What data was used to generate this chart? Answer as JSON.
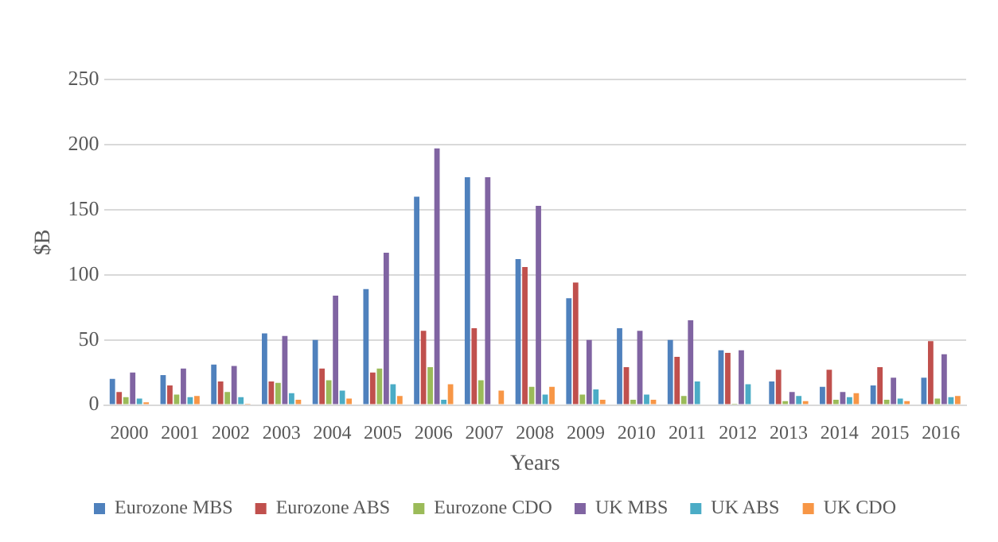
{
  "chart_data": {
    "type": "bar",
    "xlabel": "Years",
    "ylabel": "$B",
    "categories": [
      "2000",
      "2001",
      "2002",
      "2003",
      "2004",
      "2005",
      "2006",
      "2007",
      "2008",
      "2009",
      "2010",
      "2011",
      "2012",
      "2013",
      "2014",
      "2015",
      "2016"
    ],
    "series": [
      {
        "name": "Eurozone MBS",
        "color": "#4f81bd",
        "values": [
          20,
          23,
          31,
          55,
          50,
          89,
          160,
          175,
          112,
          82,
          59,
          50,
          42,
          18,
          14,
          15,
          21
        ]
      },
      {
        "name": "Eurozone ABS",
        "color": "#c0504d",
        "values": [
          10,
          15,
          18,
          18,
          28,
          25,
          57,
          59,
          106,
          94,
          29,
          37,
          40,
          27,
          27,
          29,
          49
        ]
      },
      {
        "name": "Eurozone CDO",
        "color": "#9bbb59",
        "values": [
          6,
          8,
          10,
          17,
          19,
          28,
          29,
          19,
          14,
          8,
          4,
          7,
          1,
          3,
          4,
          4,
          5
        ]
      },
      {
        "name": "UK MBS",
        "color": "#8064a2",
        "values": [
          25,
          28,
          30,
          53,
          84,
          117,
          197,
          175,
          153,
          50,
          57,
          65,
          42,
          10,
          10,
          21,
          39
        ]
      },
      {
        "name": "UK ABS",
        "color": "#4bacc6",
        "values": [
          5,
          6,
          6,
          9,
          11,
          16,
          4,
          0,
          8,
          12,
          8,
          18,
          16,
          7,
          6,
          5,
          6
        ]
      },
      {
        "name": "UK CDO",
        "color": "#f79646",
        "values": [
          2,
          7,
          1,
          4,
          5,
          7,
          16,
          11,
          14,
          4,
          4,
          0,
          null,
          3,
          9,
          3,
          7
        ]
      }
    ],
    "ylim": [
      0,
      250
    ],
    "yticks": [
      0,
      50,
      100,
      150,
      200,
      250
    ],
    "grid": "y",
    "legend": "bottom"
  }
}
